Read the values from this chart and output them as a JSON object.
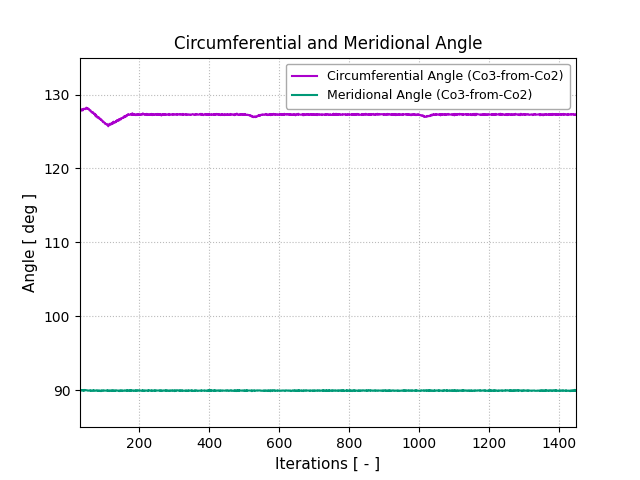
{
  "title": "Circumferential and Meridional Angle",
  "xlabel": "Iterations [ - ]",
  "ylabel": "Angle [ deg ]",
  "xlim": [
    30,
    1450
  ],
  "ylim": [
    85,
    135
  ],
  "yticks": [
    90,
    100,
    110,
    120,
    130
  ],
  "xticks": [
    200,
    400,
    600,
    800,
    1000,
    1200,
    1400
  ],
  "circ_label": "Circumferential Angle (Co3-from-Co2)",
  "merid_label": "Meridional Angle (Co3-from-Co2)",
  "circ_color": "#aa00cc",
  "merid_color": "#009977",
  "background_color": "#ffffff",
  "grid_color": "#bbbbbb",
  "title_fontsize": 12,
  "label_fontsize": 11,
  "tick_fontsize": 10,
  "legend_fontsize": 9,
  "line_width": 1.5,
  "n_points": 1450,
  "circ_steady": 127.3,
  "circ_peak": 128.2,
  "circ_dip": 125.8,
  "circ_dip_iter": 110,
  "circ_recover_iter": 170,
  "merid_steady": 89.95,
  "merid_init": 90.05
}
